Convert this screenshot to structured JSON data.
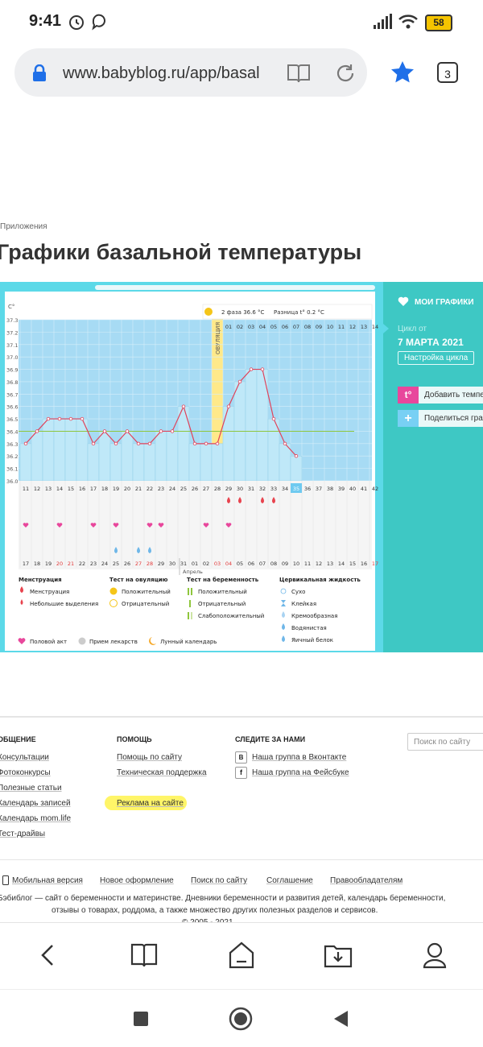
{
  "status_bar": {
    "time": "9:41",
    "battery": "58"
  },
  "browser": {
    "url": "www.babyblog.ru/app/basal",
    "tabs_count": "3"
  },
  "page": {
    "breadcrumb": "Приложения",
    "title": "Графики базальной температуры"
  },
  "chart": {
    "unit": "C°",
    "y_ticks": [
      "37.3",
      "37.2",
      "37.1",
      "37.0",
      "36.9",
      "36.8",
      "36.7",
      "36.6",
      "36.5",
      "36.4",
      "36.3",
      "36.2",
      "36.1",
      "36.0"
    ],
    "phase_info": "2 фаза 36.6 °C",
    "diff_info": "Разница t° 0.2 °C",
    "ovulation_label": "ОВУЛЯЦИЯ",
    "top_days": [
      "01",
      "02",
      "03",
      "04",
      "05",
      "06",
      "07",
      "08",
      "09",
      "10",
      "11",
      "12",
      "13",
      "14"
    ],
    "cycle_days": [
      "11",
      "12",
      "13",
      "14",
      "15",
      "16",
      "17",
      "18",
      "19",
      "20",
      "21",
      "22",
      "23",
      "24",
      "25",
      "26",
      "27",
      "28",
      "29",
      "30",
      "31",
      "32",
      "33",
      "34",
      "35",
      "36",
      "37",
      "38",
      "39",
      "40",
      "41",
      "42"
    ],
    "dates": [
      "17",
      "18",
      "19",
      "20",
      "21",
      "22",
      "23",
      "24",
      "25",
      "26",
      "27",
      "28",
      "29",
      "30",
      "31",
      "01",
      "02",
      "03",
      "04",
      "05",
      "06",
      "07",
      "08",
      "09",
      "10",
      "11",
      "12",
      "13",
      "14",
      "15",
      "16",
      "17"
    ],
    "month_label": "Апрель",
    "legend": {
      "menstruation": {
        "title": "Менструация",
        "items": [
          "Менструация",
          "Небольшие выделения"
        ]
      },
      "ovulation_test": {
        "title": "Тест на овуляцию",
        "items": [
          "Положительный",
          "Отрицательный"
        ]
      },
      "pregnancy_test": {
        "title": "Тест на беременность",
        "items": [
          "Положительный",
          "Отрицательный",
          "Слабоположительный"
        ]
      },
      "cervical": {
        "title": "Цервикальная жидкость",
        "items": [
          "Сухо",
          "Клейкая",
          "Кремообразная",
          "Водянистая",
          "Яичный белок"
        ]
      },
      "bottom": [
        "Половой акт",
        "Прием лекарств",
        "Лунный календарь"
      ]
    },
    "colors": {
      "bar": "#bfe8f8",
      "line": "#e0425a",
      "sky": "#a7dbf4",
      "ovulation": "#ffe98a",
      "green": "#8fc63d"
    }
  },
  "chart_data": {
    "type": "line",
    "title": "",
    "x": [
      11,
      12,
      13,
      14,
      15,
      16,
      17,
      18,
      19,
      20,
      21,
      22,
      23,
      24,
      25,
      26,
      27,
      28,
      29,
      30,
      31,
      32,
      33,
      34,
      35
    ],
    "series": [
      {
        "values": [
          36.3,
          36.4,
          36.5,
          36.5,
          36.5,
          36.5,
          36.3,
          36.4,
          36.3,
          36.4,
          36.3,
          36.3,
          36.4,
          36.4,
          36.6,
          36.3,
          36.3,
          36.3,
          36.6,
          36.8,
          36.9,
          36.9,
          36.5,
          36.3,
          36.2
        ]
      }
    ],
    "xlabel": "",
    "ylabel": "C°",
    "ylim": [
      36.0,
      37.3
    ],
    "grid": true
  },
  "side_panel": {
    "my_charts": "МОИ ГРАФИКИ",
    "cycle_from": "Цикл от",
    "cycle_date": "7 МАРТА 2021",
    "cycle_settings": "Настройка цикла",
    "add_temp": "Добавить темпе",
    "share": "Поделиться граф"
  },
  "footer": {
    "col1": {
      "title": "ОБЩЕНИЕ",
      "links": [
        "Консультации",
        "Фотоконкурсы",
        "Полезные статьи",
        "Календарь записей",
        "Календарь mom.life",
        "Тест-драйвы"
      ]
    },
    "col2": {
      "title": "ПОМОЩЬ",
      "links": [
        "Помощь по сайту",
        "Техническая поддержка",
        "Реклама на сайте"
      ]
    },
    "col3": {
      "title": "СЛЕДИТЕ ЗА НАМИ",
      "links": [
        "Наша группа в Вконтакте",
        "Наша группа на Фейсбуке"
      ]
    },
    "search_placeholder": "Поиск по сайту",
    "bottom_links": [
      "Мобильная версия",
      "Новое оформление",
      "Поиск по сайту",
      "Соглашение",
      "Правообладателям"
    ],
    "desc1": "Бэбиблог — сайт о беременности и материнстве. Дневники беременности и развития детей, календарь беременности,",
    "desc2": "отзывы о товарах, роддома, а также множество других полезных разделов и сервисов.",
    "copyright": "© 2005 - 2021"
  }
}
